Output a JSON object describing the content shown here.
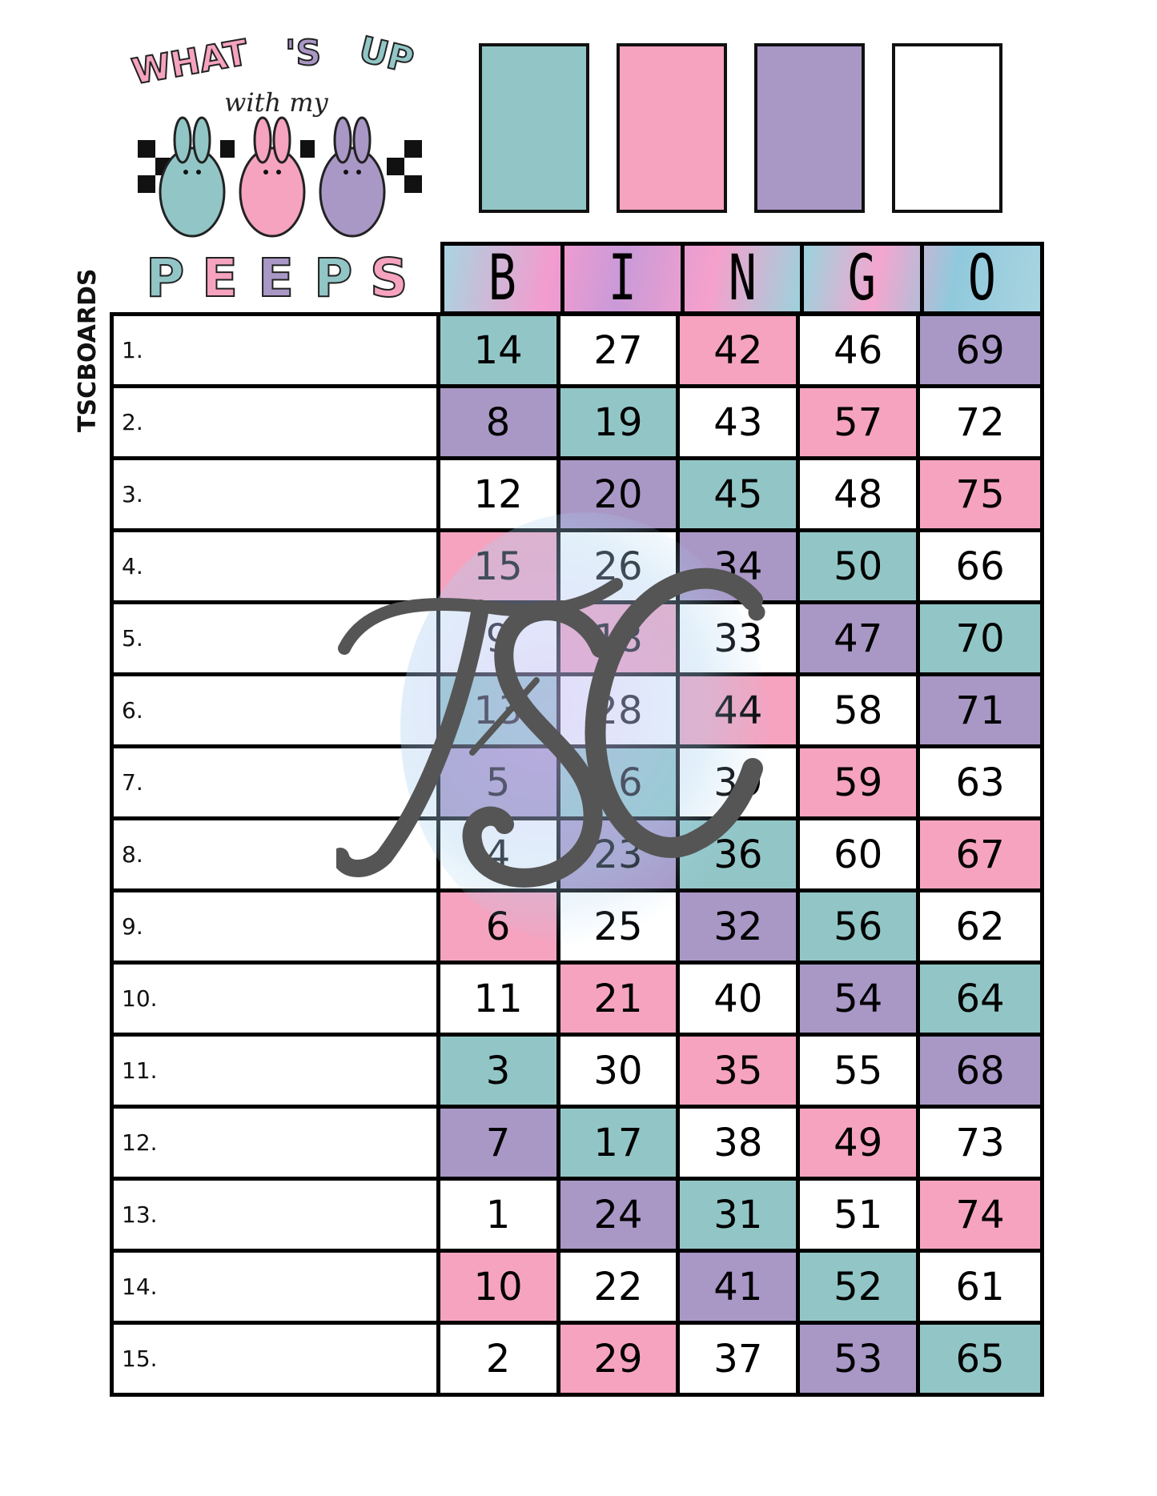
{
  "logo": {
    "line1": "WHAT'S UP",
    "line2": "with my",
    "line3": "PEEPS"
  },
  "colors": {
    "teal": "#92c6c6",
    "pink": "#f5a3bf",
    "purple": "#a997c6",
    "white": "#ffffff"
  },
  "swatches": [
    "teal",
    "pink",
    "purple",
    "white"
  ],
  "side_label": "TSCBOARDS",
  "watermark": "TSC",
  "header": [
    "B",
    "I",
    "N",
    "G",
    "O"
  ],
  "rows": [
    {
      "label": "1.",
      "numbers": [
        14,
        27,
        42,
        46,
        69
      ],
      "colors": [
        "teal",
        "white",
        "pink",
        "white",
        "purple"
      ]
    },
    {
      "label": "2.",
      "numbers": [
        8,
        19,
        43,
        57,
        72
      ],
      "colors": [
        "purple",
        "teal",
        "white",
        "pink",
        "white"
      ]
    },
    {
      "label": "3.",
      "numbers": [
        12,
        20,
        45,
        48,
        75
      ],
      "colors": [
        "white",
        "purple",
        "teal",
        "white",
        "pink"
      ]
    },
    {
      "label": "4.",
      "numbers": [
        15,
        26,
        34,
        50,
        66
      ],
      "colors": [
        "pink",
        "white",
        "purple",
        "teal",
        "white"
      ]
    },
    {
      "label": "5.",
      "numbers": [
        9,
        18,
        33,
        47,
        70
      ],
      "colors": [
        "white",
        "pink",
        "white",
        "purple",
        "teal"
      ]
    },
    {
      "label": "6.",
      "numbers": [
        13,
        28,
        44,
        58,
        71
      ],
      "colors": [
        "teal",
        "white",
        "pink",
        "white",
        "purple"
      ]
    },
    {
      "label": "7.",
      "numbers": [
        5,
        16,
        39,
        59,
        63
      ],
      "colors": [
        "purple",
        "teal",
        "white",
        "pink",
        "white"
      ]
    },
    {
      "label": "8.",
      "numbers": [
        4,
        23,
        36,
        60,
        67
      ],
      "colors": [
        "white",
        "purple",
        "teal",
        "white",
        "pink"
      ]
    },
    {
      "label": "9.",
      "numbers": [
        6,
        25,
        32,
        56,
        62
      ],
      "colors": [
        "pink",
        "white",
        "purple",
        "teal",
        "white"
      ]
    },
    {
      "label": "10.",
      "numbers": [
        11,
        21,
        40,
        54,
        64
      ],
      "colors": [
        "white",
        "pink",
        "white",
        "purple",
        "teal"
      ]
    },
    {
      "label": "11.",
      "numbers": [
        3,
        30,
        35,
        55,
        68
      ],
      "colors": [
        "teal",
        "white",
        "pink",
        "white",
        "purple"
      ]
    },
    {
      "label": "12.",
      "numbers": [
        7,
        17,
        38,
        49,
        73
      ],
      "colors": [
        "purple",
        "teal",
        "white",
        "pink",
        "white"
      ]
    },
    {
      "label": "13.",
      "numbers": [
        1,
        24,
        31,
        51,
        74
      ],
      "colors": [
        "white",
        "purple",
        "teal",
        "white",
        "pink"
      ]
    },
    {
      "label": "14.",
      "numbers": [
        10,
        22,
        41,
        52,
        61
      ],
      "colors": [
        "pink",
        "white",
        "purple",
        "teal",
        "white"
      ]
    },
    {
      "label": "15.",
      "numbers": [
        2,
        29,
        37,
        53,
        65
      ],
      "colors": [
        "white",
        "pink",
        "white",
        "purple",
        "teal"
      ]
    }
  ]
}
